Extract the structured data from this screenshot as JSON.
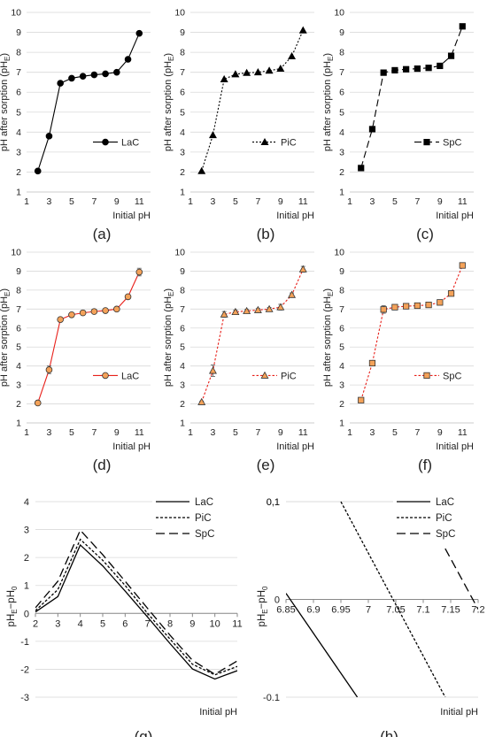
{
  "chart_data": [
    {
      "panel": "(a)",
      "type": "line",
      "style": "black-solid",
      "xlabel": "Initial pH",
      "ylabel": "pH after sorption (pH",
      "ylabel_sub": "E",
      "xlim": [
        1,
        12
      ],
      "ylim": [
        1,
        10
      ],
      "xticks": [
        1,
        3,
        5,
        7,
        9,
        11
      ],
      "yticks": [
        1,
        2,
        3,
        4,
        5,
        6,
        7,
        8,
        9,
        10
      ],
      "series": [
        {
          "name": "LaC",
          "marker": "circle",
          "x": [
            2,
            3,
            4,
            5,
            6,
            7,
            8,
            9,
            10,
            11
          ],
          "y": [
            2.05,
            3.8,
            6.45,
            6.7,
            6.8,
            6.87,
            6.92,
            7.0,
            7.65,
            8.95
          ]
        }
      ]
    },
    {
      "panel": "(b)",
      "type": "line",
      "style": "black-dotted",
      "xlabel": "Initial pH",
      "ylabel": "pH after sorption (pH",
      "ylabel_sub": "E",
      "xlim": [
        1,
        12
      ],
      "ylim": [
        1,
        10
      ],
      "xticks": [
        1,
        3,
        5,
        7,
        9,
        11
      ],
      "yticks": [
        1,
        2,
        3,
        4,
        5,
        6,
        7,
        8,
        9,
        10
      ],
      "series": [
        {
          "name": "PiC",
          "marker": "triangle",
          "x": [
            2,
            3,
            4,
            5,
            6,
            7,
            8,
            9,
            10,
            11
          ],
          "y": [
            2.05,
            3.85,
            6.65,
            6.9,
            6.97,
            7.0,
            7.08,
            7.18,
            7.8,
            9.1
          ]
        }
      ]
    },
    {
      "panel": "(c)",
      "type": "line",
      "style": "black-dashed",
      "xlabel": "Initial pH",
      "ylabel": "pH after sorption (pH",
      "ylabel_sub": "E",
      "xlim": [
        1,
        12
      ],
      "ylim": [
        1,
        10
      ],
      "xticks": [
        1,
        3,
        5,
        7,
        9,
        11
      ],
      "yticks": [
        1,
        2,
        3,
        4,
        5,
        6,
        7,
        8,
        9,
        10
      ],
      "series": [
        {
          "name": "SpC",
          "marker": "square",
          "x": [
            2,
            3,
            4,
            5,
            6,
            7,
            8,
            9,
            10,
            11
          ],
          "y": [
            2.2,
            4.15,
            6.98,
            7.1,
            7.15,
            7.18,
            7.22,
            7.32,
            7.82,
            9.3
          ]
        }
      ]
    },
    {
      "panel": "(d)",
      "type": "line",
      "style": "red-solid",
      "xlabel": "Initial pH",
      "ylabel": "pH after sorption (pH",
      "ylabel_sub": "E",
      "xlim": [
        1,
        12
      ],
      "ylim": [
        1,
        10
      ],
      "xticks": [
        1,
        3,
        5,
        7,
        9,
        11
      ],
      "yticks": [
        1,
        2,
        3,
        4,
        5,
        6,
        7,
        8,
        9,
        10
      ],
      "series": [
        {
          "name": "LaC",
          "marker": "circle",
          "x": [
            2,
            3,
            4,
            5,
            6,
            7,
            8,
            9,
            10,
            11
          ],
          "y": [
            2.05,
            3.8,
            6.45,
            6.7,
            6.8,
            6.87,
            6.92,
            7.0,
            7.65,
            8.95
          ],
          "err": [
            0.05,
            0.2,
            0.08,
            0.1,
            0.08,
            0.08,
            0.08,
            0.08,
            0.1,
            0.2
          ]
        }
      ]
    },
    {
      "panel": "(e)",
      "type": "line",
      "style": "red-dotted",
      "xlabel": "Initial pH",
      "ylabel": "pH after sorption (pH",
      "ylabel_sub": "E",
      "xlim": [
        1,
        12
      ],
      "ylim": [
        1,
        10
      ],
      "xticks": [
        1,
        3,
        5,
        7,
        9,
        11
      ],
      "yticks": [
        1,
        2,
        3,
        4,
        5,
        6,
        7,
        8,
        9,
        10
      ],
      "series": [
        {
          "name": "PiC",
          "marker": "triangle",
          "x": [
            2,
            3,
            4,
            5,
            6,
            7,
            8,
            9,
            10,
            11
          ],
          "y": [
            2.1,
            3.75,
            6.72,
            6.85,
            6.9,
            6.95,
            7.0,
            7.1,
            7.75,
            9.1
          ],
          "err": [
            0.05,
            0.3,
            0.15,
            0.1,
            0.08,
            0.08,
            0.08,
            0.15,
            0.1,
            0.15
          ]
        }
      ]
    },
    {
      "panel": "(f)",
      "type": "line",
      "style": "red-dotted",
      "xlabel": "Initial pH",
      "ylabel": "pH after sorption (pH",
      "ylabel_sub": "E",
      "xlim": [
        1,
        12
      ],
      "ylim": [
        1,
        10
      ],
      "xticks": [
        1,
        3,
        5,
        7,
        9,
        11
      ],
      "yticks": [
        1,
        2,
        3,
        4,
        5,
        6,
        7,
        8,
        9,
        10
      ],
      "series": [
        {
          "name": "SpC",
          "marker": "square",
          "x": [
            2,
            3,
            4,
            5,
            6,
            7,
            8,
            9,
            10,
            11
          ],
          "y": [
            2.2,
            4.15,
            6.98,
            7.1,
            7.15,
            7.18,
            7.22,
            7.35,
            7.82,
            9.3
          ],
          "err": [
            0.05,
            0.08,
            0.2,
            0.08,
            0.08,
            0.08,
            0.08,
            0.08,
            0.1,
            0.08
          ]
        }
      ]
    },
    {
      "panel": "(g)",
      "type": "line",
      "xlabel": "Initial pH",
      "ylabel": "pH",
      "xlim": [
        2,
        11
      ],
      "ylim": [
        -3,
        4
      ],
      "xticks": [
        2,
        3,
        4,
        5,
        6,
        7,
        8,
        9,
        10,
        11
      ],
      "yticks": [
        -3,
        -2,
        -1,
        0,
        1,
        2,
        3,
        4
      ],
      "legend": "top-right",
      "series": [
        {
          "name": "LaC",
          "dash": "solid",
          "x": [
            2,
            3,
            4,
            5,
            6,
            7,
            8,
            9,
            10,
            11
          ],
          "y": [
            0.05,
            0.6,
            2.45,
            1.7,
            0.8,
            -0.13,
            -1.08,
            -1.99,
            -2.35,
            -2.05
          ]
        },
        {
          "name": "PiC",
          "dash": "dotted",
          "x": [
            2,
            3,
            4,
            5,
            6,
            7,
            8,
            9,
            10,
            11
          ],
          "y": [
            0.1,
            0.85,
            2.65,
            1.9,
            1.0,
            0.0,
            -0.92,
            -1.82,
            -2.2,
            -1.9
          ]
        },
        {
          "name": "SpC",
          "dash": "dashed",
          "x": [
            2,
            3,
            4,
            5,
            6,
            7,
            8,
            9,
            10,
            11
          ],
          "y": [
            0.2,
            1.15,
            2.98,
            2.1,
            1.15,
            0.18,
            -0.78,
            -1.68,
            -2.18,
            -1.7
          ]
        }
      ]
    },
    {
      "panel": "(h)",
      "type": "line",
      "xlabel": "Initial pH",
      "ylabel": "pH",
      "xlim": [
        6.85,
        7.2
      ],
      "ylim": [
        -0.1,
        0.1
      ],
      "xticks": [
        "6.85",
        "6.9",
        "6.95",
        "7",
        "7.05",
        "7.1",
        "7.15",
        "7.2"
      ],
      "yticks": [
        "-0.1",
        "0",
        "0,1",
        "0.1"
      ],
      "legend": "top-right",
      "series": [
        {
          "name": "LaC",
          "dash": "solid",
          "x": [
            6.85,
            6.98
          ],
          "y": [
            0.0062,
            -0.1
          ]
        },
        {
          "name": "PiC",
          "dash": "dotted",
          "x": [
            6.95,
            7.14
          ],
          "y": [
            0.1,
            -0.1
          ]
        },
        {
          "name": "SpC",
          "dash": "dashed",
          "x": [
            7.14,
            7.2
          ],
          "y": [
            0.052,
            -0.01
          ]
        }
      ]
    }
  ]
}
